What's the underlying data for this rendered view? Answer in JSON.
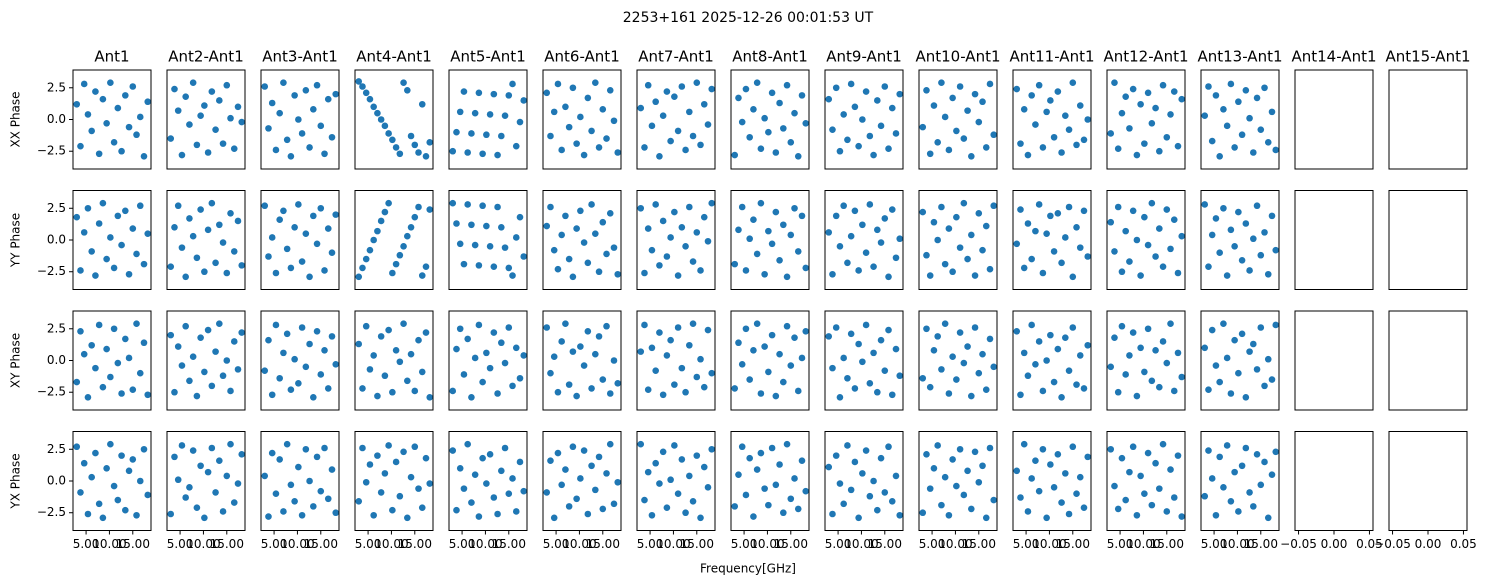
{
  "chart_data": {
    "type": "scatter",
    "title": "2253+161 2025-12-26 00:01:53 UT",
    "xlabel": "Frequency[GHz]",
    "row_labels": [
      "XX Phase",
      "YY Phase",
      "XY Phase",
      "YX Phase"
    ],
    "column_titles": [
      "Ant1",
      "Ant2-Ant1",
      "Ant3-Ant1",
      "Ant4-Ant1",
      "Ant5-Ant1",
      "Ant6-Ant1",
      "Ant7-Ant1",
      "Ant8-Ant1",
      "Ant9-Ant1",
      "Ant10-Ant1",
      "Ant11-Ant1",
      "Ant12-Ant1",
      "Ant13-Ant1",
      "Ant14-Ant1",
      "Ant15-Ant1"
    ],
    "color": "#1f77b4",
    "x": [
      3.0,
      3.8,
      4.6,
      5.4,
      6.2,
      7.0,
      7.8,
      8.6,
      9.4,
      10.2,
      11.0,
      11.8,
      12.6,
      13.4,
      14.2,
      15.0,
      15.8,
      16.6,
      17.4,
      18.2
    ],
    "xlim": [
      2.2,
      18.9
    ],
    "xticks": [
      {
        "value": 5,
        "label": "5.00"
      },
      {
        "value": 10,
        "label": "10.00"
      },
      {
        "value": 15,
        "label": "15.00"
      }
    ],
    "xlim_empty": [
      -0.055,
      0.055
    ],
    "xticks_empty": [
      {
        "value": -0.05,
        "label": "−0.05"
      },
      {
        "value": 0,
        "label": "0.00"
      },
      {
        "value": 0.05,
        "label": "0.05"
      }
    ],
    "ylim": [
      -3.9,
      3.9
    ],
    "yticks": [
      {
        "value": -2.5,
        "label": "−2.5"
      },
      {
        "value": 0,
        "label": "0.0"
      },
      2.5
    ],
    "panels": [
      [
        [
          1.2,
          -2.1,
          2.8,
          0.4,
          -0.9,
          2.2,
          -2.7,
          1.6,
          -0.3,
          2.9,
          -1.8,
          0.9,
          -2.5,
          1.9,
          -0.6,
          2.6,
          -1.2,
          0.2,
          -2.9,
          1.4
        ],
        [
          -1.5,
          2.4,
          0.7,
          -2.8,
          1.8,
          -0.4,
          2.9,
          -2.0,
          0.3,
          1.1,
          -2.6,
          2.2,
          -0.8,
          1.5,
          -1.9,
          2.7,
          0.1,
          -2.3,
          1.0,
          -0.2
        ],
        [
          2.6,
          -0.7,
          1.3,
          -2.4,
          0.5,
          2.9,
          -1.6,
          -2.9,
          1.9,
          0.0,
          -1.1,
          2.3,
          -2.2,
          0.8,
          2.7,
          -0.5,
          -2.7,
          1.6,
          -1.4,
          2.0
        ],
        [
          3.0,
          2.6,
          2.1,
          1.6,
          1.0,
          0.5,
          0.0,
          -0.5,
          -1.1,
          -1.6,
          -2.2,
          -2.7,
          2.9,
          2.3,
          -1.3,
          -2.0,
          -2.6,
          1.2,
          -2.9,
          -1.8
        ],
        [
          -2.5,
          -1.0,
          0.6,
          2.2,
          -2.6,
          -1.1,
          0.5,
          2.1,
          -2.7,
          -1.2,
          0.4,
          2.0,
          -2.8,
          -1.3,
          0.3,
          1.9,
          2.8,
          -2.1,
          -0.2,
          1.5
        ],
        [
          2.1,
          -1.3,
          0.6,
          2.8,
          -2.4,
          1.0,
          -0.6,
          2.5,
          -1.9,
          0.2,
          -2.8,
          1.7,
          -0.9,
          2.9,
          -2.2,
          0.8,
          -1.5,
          2.3,
          -0.1,
          -2.6
        ],
        [
          0.9,
          -2.2,
          2.7,
          -0.5,
          1.4,
          -2.9,
          0.3,
          2.2,
          -1.7,
          1.8,
          -0.9,
          2.6,
          -2.4,
          0.6,
          -1.3,
          2.9,
          -2.0,
          1.2,
          -0.4,
          2.4
        ],
        [
          -2.8,
          1.7,
          -0.2,
          2.4,
          -1.4,
          0.8,
          2.9,
          -2.3,
          0.1,
          -1.0,
          2.1,
          -2.6,
          1.3,
          -0.7,
          2.7,
          -1.8,
          0.5,
          -2.9,
          1.9,
          -0.3
        ],
        [
          1.6,
          -0.8,
          2.5,
          -2.5,
          0.4,
          -1.6,
          2.8,
          1.0,
          -2.1,
          0.0,
          2.2,
          -1.3,
          -2.8,
          1.5,
          -0.5,
          2.6,
          -2.3,
          0.9,
          -1.1,
          2.0
        ],
        [
          -0.6,
          2.3,
          -2.7,
          1.1,
          -1.8,
          2.9,
          0.2,
          -2.4,
          1.7,
          -0.9,
          2.6,
          -1.5,
          0.7,
          -2.9,
          2.0,
          -0.2,
          1.4,
          -2.2,
          2.8,
          -1.2
        ],
        [
          2.4,
          -1.9,
          0.8,
          -2.8,
          1.9,
          -0.4,
          2.7,
          -2.2,
          0.6,
          1.5,
          -1.4,
          2.2,
          -2.6,
          0.3,
          -0.8,
          2.9,
          -2.0,
          1.1,
          -1.6,
          0.0
        ],
        [
          -1.1,
          2.9,
          -2.3,
          0.5,
          1.8,
          -0.7,
          2.4,
          -2.8,
          1.2,
          -1.9,
          2.1,
          -0.3,
          0.9,
          -2.5,
          2.7,
          -1.4,
          0.4,
          2.2,
          -2.1,
          1.6
        ],
        [
          0.3,
          2.6,
          -1.7,
          1.9,
          -2.9,
          0.8,
          -0.5,
          2.8,
          -2.2,
          1.4,
          -1.2,
          2.3,
          0.1,
          -2.6,
          1.7,
          -0.8,
          2.5,
          -1.8,
          0.6,
          -2.4
        ]
      ],
      [
        [
          1.8,
          -2.4,
          0.6,
          2.5,
          -0.9,
          -2.8,
          1.3,
          2.9,
          -1.5,
          0.2,
          -2.2,
          1.9,
          -0.4,
          2.3,
          -2.7,
          0.9,
          -1.1,
          2.7,
          -1.9,
          0.5
        ],
        [
          -2.1,
          1.0,
          2.7,
          -0.6,
          -2.9,
          1.7,
          0.3,
          -1.4,
          2.4,
          -2.5,
          0.8,
          2.9,
          -1.8,
          1.2,
          -0.2,
          -2.6,
          2.1,
          -0.9,
          1.5,
          -2.0
        ],
        [
          2.7,
          -1.3,
          0.2,
          -2.6,
          1.6,
          2.3,
          -0.7,
          -2.2,
          1.0,
          2.8,
          -1.7,
          0.5,
          -2.9,
          1.9,
          -0.3,
          2.5,
          -2.4,
          0.9,
          -1.0,
          2.0
        ],
        [
          -2.9,
          -2.2,
          -1.5,
          -0.8,
          0.0,
          0.7,
          1.5,
          2.2,
          2.9,
          -2.6,
          -1.9,
          -1.2,
          -0.5,
          0.3,
          1.0,
          1.8,
          2.6,
          -2.8,
          -2.1,
          2.4
        ],
        [
          2.9,
          1.3,
          -0.3,
          -1.9,
          2.8,
          1.2,
          -0.4,
          -2.0,
          2.7,
          1.1,
          -0.5,
          -2.1,
          2.6,
          1.0,
          -0.6,
          -2.2,
          -2.8,
          0.2,
          1.8,
          -1.3
        ],
        [
          1.1,
          2.6,
          -0.8,
          -2.3,
          0.4,
          1.9,
          -1.5,
          -2.9,
          0.9,
          2.3,
          -0.2,
          -1.8,
          2.8,
          0.5,
          -2.5,
          1.4,
          -1.1,
          2.1,
          -0.6,
          -2.7
        ],
        [
          2.5,
          -2.6,
          0.9,
          -0.8,
          2.8,
          -2.0,
          1.5,
          -1.3,
          0.2,
          2.2,
          -2.8,
          1.0,
          -0.5,
          2.6,
          -1.7,
          0.6,
          -2.4,
          1.8,
          -0.1,
          2.9
        ],
        [
          -1.9,
          0.8,
          2.6,
          -2.4,
          0.1,
          1.6,
          -1.1,
          2.9,
          -2.7,
          0.7,
          -0.3,
          2.2,
          -1.6,
          1.2,
          -2.9,
          0.4,
          2.5,
          -0.9,
          1.9,
          -2.2
        ],
        [
          0.6,
          -2.7,
          1.9,
          -0.5,
          2.7,
          -1.8,
          0.3,
          2.3,
          -2.4,
          1.2,
          -1.0,
          2.8,
          -2.1,
          0.8,
          -0.2,
          1.7,
          -2.9,
          2.4,
          -1.4,
          0.1
        ],
        [
          2.2,
          -1.2,
          -2.8,
          1.4,
          0.0,
          2.6,
          -1.9,
          0.9,
          -2.5,
          1.8,
          -0.6,
          2.9,
          -1.5,
          0.4,
          -2.8,
          2.1,
          -0.8,
          1.1,
          -2.3,
          2.7
        ],
        [
          -0.3,
          2.4,
          -2.2,
          1.3,
          -1.5,
          0.7,
          2.8,
          -2.6,
          0.5,
          1.9,
          -0.9,
          2.1,
          -1.8,
          0.2,
          2.6,
          -2.9,
          1.0,
          -0.6,
          2.3,
          -1.3
        ],
        [
          1.4,
          -0.9,
          2.6,
          -2.5,
          0.7,
          -1.7,
          2.3,
          0.0,
          -2.8,
          1.8,
          -0.4,
          2.9,
          -1.3,
          0.9,
          -2.1,
          2.4,
          -0.7,
          1.6,
          -2.6,
          0.3
        ],
        [
          2.8,
          -2.1,
          0.4,
          1.7,
          -1.0,
          2.5,
          -2.8,
          0.8,
          -0.5,
          2.2,
          -1.6,
          1.3,
          -2.4,
          0.1,
          2.7,
          -1.2,
          0.6,
          -2.7,
          1.9,
          -0.8
        ]
      ],
      [
        [
          -1.7,
          2.3,
          0.5,
          -2.9,
          1.2,
          -0.6,
          2.8,
          -2.1,
          0.9,
          -1.3,
          2.5,
          -0.2,
          -2.6,
          1.7,
          0.2,
          -2.3,
          2.9,
          -1.0,
          1.4,
          -2.7
        ],
        [
          2.0,
          -2.5,
          1.1,
          -0.4,
          2.7,
          -1.6,
          0.3,
          -2.8,
          1.8,
          -0.9,
          2.4,
          -2.0,
          0.7,
          2.9,
          -1.2,
          0.0,
          -2.4,
          1.5,
          -0.7,
          2.2
        ],
        [
          -0.8,
          1.6,
          -2.7,
          2.8,
          -1.4,
          0.6,
          2.1,
          -2.3,
          0.1,
          -1.8,
          2.6,
          -0.5,
          1.3,
          -2.9,
          2.3,
          -1.1,
          0.8,
          -2.2,
          1.9,
          -0.3
        ],
        [
          1.3,
          -2.2,
          2.7,
          -0.7,
          0.4,
          -2.8,
          1.9,
          -1.2,
          2.4,
          -2.5,
          0.8,
          -0.1,
          2.9,
          -1.6,
          0.5,
          -2.4,
          1.6,
          -0.9,
          2.2,
          -2.9
        ],
        [
          -2.4,
          0.9,
          2.5,
          -1.1,
          1.7,
          -2.9,
          0.2,
          2.8,
          -1.7,
          0.6,
          -0.6,
          2.2,
          -2.6,
          1.4,
          -0.2,
          2.6,
          -2.0,
          1.0,
          -1.4,
          0.4
        ],
        [
          2.6,
          -1.0,
          0.3,
          -2.5,
          1.5,
          2.9,
          -1.9,
          0.7,
          -2.8,
          1.1,
          -0.4,
          2.3,
          -2.2,
          0.5,
          1.9,
          -1.5,
          2.7,
          -2.6,
          0.0,
          -1.8
        ],
        [
          0.7,
          2.8,
          -2.3,
          1.0,
          -0.8,
          2.2,
          -2.7,
          0.4,
          1.6,
          -1.9,
          2.6,
          -0.6,
          -2.5,
          1.2,
          2.9,
          -1.3,
          0.1,
          -2.1,
          2.4,
          -1.0
        ],
        [
          -2.2,
          1.4,
          -0.3,
          2.5,
          -1.5,
          0.8,
          2.9,
          -2.6,
          1.1,
          -0.9,
          2.0,
          -2.8,
          0.5,
          -1.7,
          2.7,
          -0.4,
          1.8,
          -2.4,
          0.2,
          2.3
        ],
        [
          1.9,
          -0.6,
          2.6,
          -2.9,
          0.2,
          -1.4,
          2.1,
          -2.2,
          1.3,
          -0.1,
          2.8,
          -1.8,
          0.6,
          -2.5,
          1.6,
          -0.8,
          2.4,
          -2.7,
          0.9,
          -1.2
        ],
        [
          -1.4,
          2.5,
          -2.1,
          0.8,
          1.9,
          -0.7,
          2.9,
          -2.6,
          0.3,
          -1.5,
          2.2,
          -0.2,
          1.1,
          -2.8,
          2.6,
          -1.0,
          0.5,
          -2.3,
          1.7,
          -0.5
        ],
        [
          2.3,
          -2.7,
          0.6,
          -1.2,
          2.8,
          -0.3,
          1.5,
          -2.4,
          0.0,
          2.0,
          -1.7,
          0.9,
          -2.9,
          1.8,
          -0.8,
          2.6,
          -1.9,
          0.4,
          -2.2,
          1.2
        ],
        [
          -0.5,
          1.8,
          -2.5,
          2.7,
          -1.1,
          0.4,
          2.2,
          -2.8,
          1.0,
          -0.9,
          2.5,
          -1.6,
          0.8,
          -2.1,
          1.5,
          -0.2,
          2.9,
          -2.4,
          0.6,
          -1.3
        ],
        [
          1.0,
          -2.3,
          2.4,
          -0.4,
          -1.7,
          2.9,
          0.2,
          -2.6,
          1.6,
          -1.0,
          2.1,
          -2.9,
          0.7,
          1.3,
          -0.7,
          2.6,
          -2.0,
          0.1,
          -1.5,
          2.8
        ]
      ],
      [
        [
          2.7,
          -0.9,
          1.4,
          -2.6,
          0.3,
          2.2,
          -1.8,
          -2.9,
          1.0,
          2.9,
          -0.4,
          -1.5,
          2.0,
          -2.3,
          0.8,
          1.7,
          -2.7,
          0.0,
          2.5,
          -1.1
        ],
        [
          -2.6,
          1.9,
          0.1,
          2.8,
          -1.3,
          -0.5,
          2.4,
          -2.1,
          1.2,
          -2.9,
          0.7,
          2.6,
          -0.9,
          1.6,
          -2.4,
          0.4,
          2.9,
          -1.7,
          -0.2,
          2.1
        ],
        [
          0.4,
          -2.8,
          2.2,
          -1.0,
          1.7,
          -2.4,
          2.9,
          -0.3,
          -1.6,
          1.1,
          -2.7,
          2.5,
          0.0,
          -2.0,
          1.9,
          -0.8,
          2.6,
          -1.4,
          0.9,
          -2.5
        ],
        [
          -1.6,
          2.6,
          -0.1,
          1.3,
          -2.7,
          2.0,
          -0.9,
          0.6,
          2.8,
          -2.3,
          1.5,
          -1.2,
          2.3,
          -2.9,
          0.3,
          2.7,
          -0.6,
          -2.1,
          1.8,
          -0.2
        ],
        [
          2.4,
          -2.3,
          1.0,
          -0.6,
          2.9,
          -1.7,
          0.5,
          -2.8,
          1.8,
          -0.2,
          2.1,
          -1.3,
          -2.6,
          0.8,
          2.6,
          -1.0,
          0.2,
          -2.4,
          1.5,
          -0.8
        ],
        [
          -0.9,
          1.6,
          -2.9,
          2.2,
          -0.3,
          0.9,
          -2.0,
          2.7,
          -1.4,
          0.2,
          2.4,
          -2.6,
          1.2,
          -0.7,
          1.9,
          -2.2,
          0.6,
          2.9,
          -1.8,
          -0.1
        ],
        [
          2.9,
          -1.5,
          0.7,
          -2.7,
          1.4,
          -0.2,
          2.3,
          -2.1,
          0.1,
          2.8,
          -1.0,
          1.7,
          -2.5,
          0.4,
          -1.6,
          2.0,
          -2.9,
          1.1,
          -0.5,
          2.5
        ],
        [
          -2.0,
          0.5,
          2.7,
          -1.1,
          1.8,
          -2.8,
          0.9,
          2.2,
          -0.6,
          -1.9,
          2.6,
          -0.3,
          1.3,
          -2.5,
          2.9,
          -1.4,
          0.2,
          -2.2,
          1.6,
          -0.8
        ],
        [
          1.1,
          -2.6,
          2.0,
          -0.2,
          -1.8,
          2.8,
          -0.7,
          1.5,
          -2.9,
          0.6,
          2.4,
          -1.2,
          0.0,
          -2.3,
          1.8,
          -0.9,
          2.7,
          -1.6,
          0.4,
          -2.7
        ],
        [
          -2.5,
          2.1,
          -0.6,
          1.0,
          2.8,
          -1.9,
          0.3,
          -2.7,
          1.7,
          -0.4,
          2.5,
          -1.1,
          0.8,
          -2.2,
          2.3,
          -0.1,
          1.2,
          -2.9,
          2.6,
          -1.5
        ],
        [
          0.8,
          -1.3,
          2.9,
          -2.4,
          0.2,
          1.6,
          -0.8,
          2.5,
          -2.9,
          1.3,
          -0.5,
          2.1,
          -1.7,
          0.6,
          -2.6,
          2.7,
          -1.0,
          0.3,
          -2.1,
          1.9
        ],
        [
          2.5,
          -0.4,
          -2.2,
          1.8,
          -1.5,
          0.7,
          2.7,
          -2.7,
          0.4,
          -1.0,
          2.2,
          -1.9,
          1.4,
          -0.6,
          2.9,
          -2.4,
          0.9,
          -1.3,
          2.0,
          -2.8
        ],
        [
          -1.2,
          2.4,
          0.2,
          -2.7,
          1.9,
          -0.5,
          2.8,
          -1.6,
          0.7,
          -2.4,
          1.2,
          2.6,
          -0.9,
          -2.0,
          2.1,
          -0.3,
          1.5,
          -2.9,
          0.5,
          2.3
        ]
      ]
    ]
  }
}
